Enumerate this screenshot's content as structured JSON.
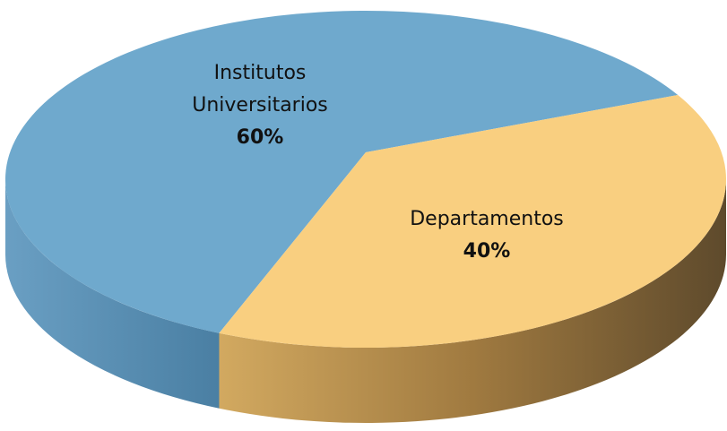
{
  "chart_data": {
    "type": "pie",
    "three_d": true,
    "categories": [
      "Institutos Universitarios",
      "Departamentos"
    ],
    "values": [
      60,
      40
    ],
    "value_labels": [
      "60%",
      "40%"
    ],
    "colors": [
      "#6fa9cd",
      "#f9cf80"
    ]
  }
}
